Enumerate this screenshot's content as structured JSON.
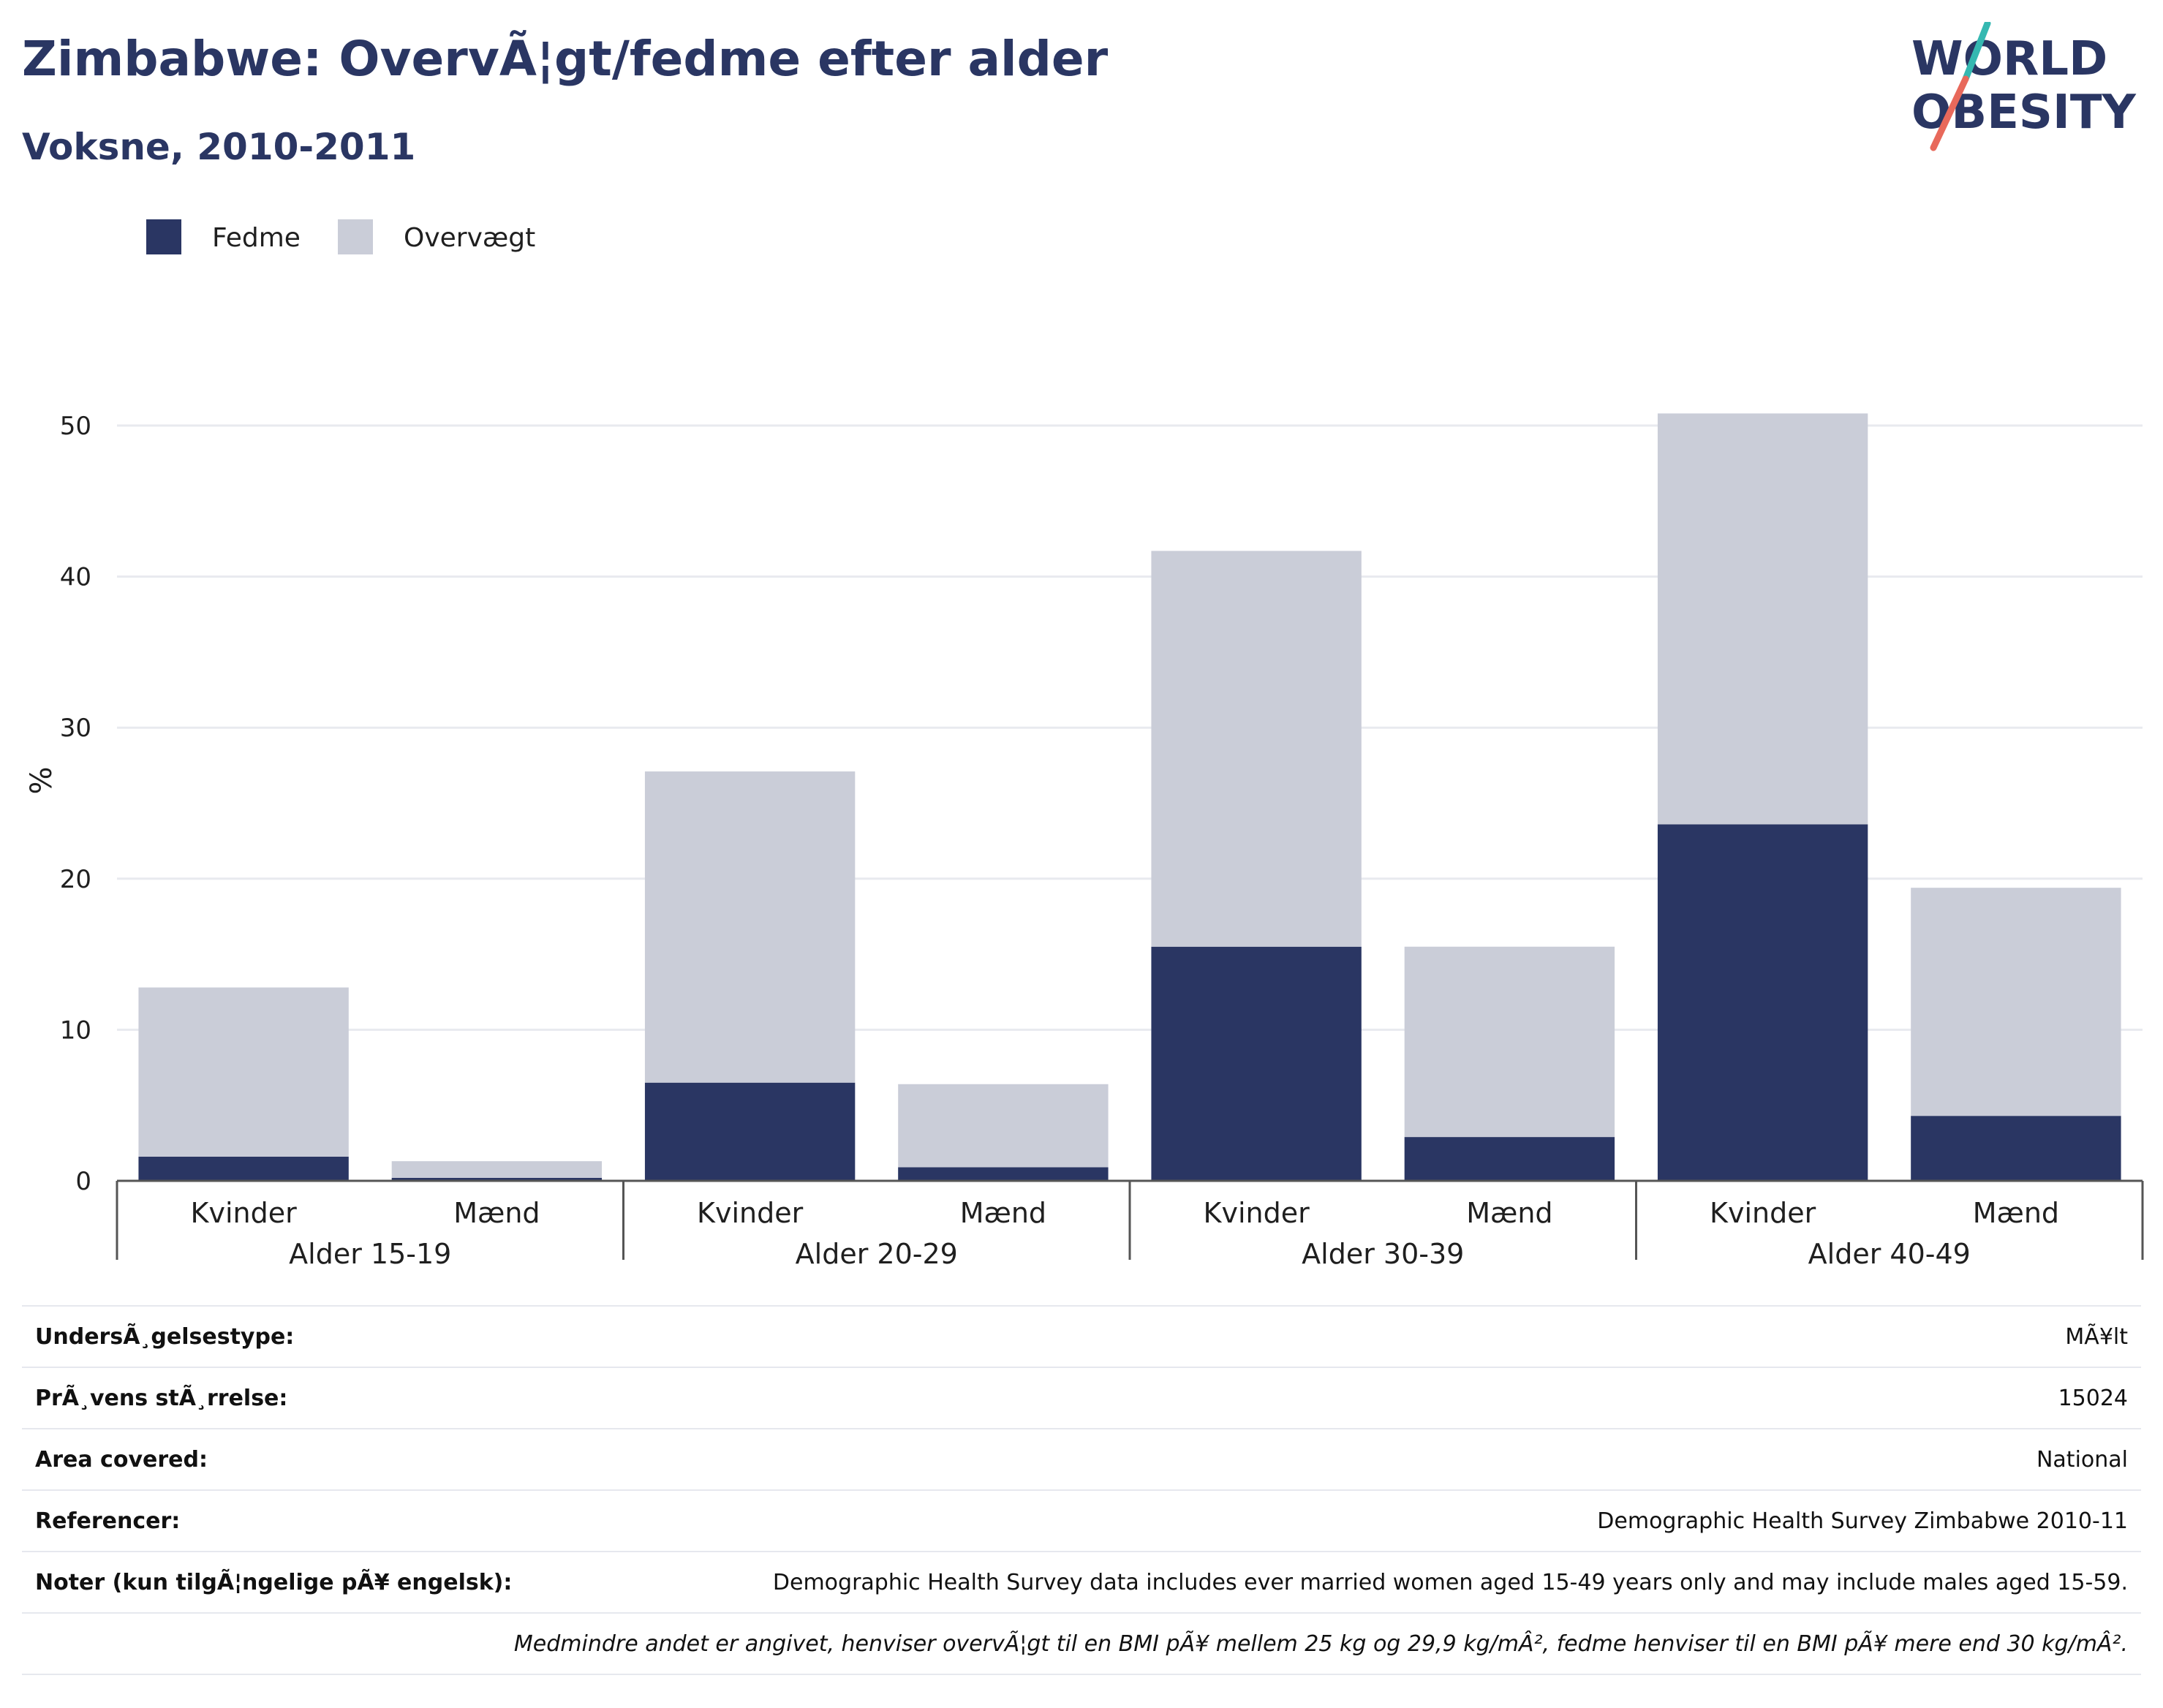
{
  "header": {
    "title": "Zimbabwe: OvervÃ¦gt/fedme efter alder",
    "subtitle": "Voksne, 2010-2011"
  },
  "logo": {
    "line1": "WORLD",
    "line2": "OBESITY",
    "slash_teal": "#35b8b1",
    "slash_coral": "#e8695b"
  },
  "chart_data": {
    "type": "bar",
    "stacked": true,
    "ylabel": "%",
    "ylim": [
      0,
      53
    ],
    "yticks": [
      0,
      10,
      20,
      30,
      40,
      50
    ],
    "grid": true,
    "legend_placement": "top-left",
    "groups": [
      "Alder 15-19",
      "Alder 20-29",
      "Alder 30-39",
      "Alder 40-49"
    ],
    "categories": [
      "Kvinder",
      "Mænd",
      "Kvinder",
      "Mænd",
      "Kvinder",
      "Mænd",
      "Kvinder",
      "Mænd"
    ],
    "series": [
      {
        "name": "Fedme",
        "color": "#2a3663",
        "values": [
          1.6,
          0.2,
          6.5,
          0.9,
          15.5,
          2.9,
          23.6,
          4.3
        ]
      },
      {
        "name": "Overvægt",
        "color": "#cacdd8",
        "values": [
          11.2,
          1.1,
          20.6,
          5.5,
          26.2,
          12.6,
          27.2,
          15.1
        ]
      }
    ]
  },
  "info": {
    "rows": [
      {
        "label": "UndersÃ¸gelsestype:",
        "value": "MÃ¥lt"
      },
      {
        "label": "PrÃ¸vens stÃ¸rrelse:",
        "value": "15024"
      },
      {
        "label": "Area covered:",
        "value": "National"
      },
      {
        "label": "Referencer:",
        "value": "Demographic Health Survey Zimbabwe 2010-11"
      },
      {
        "label": "Noter (kun tilgÃ¦ngelige pÃ¥ engelsk):",
        "value": "Demographic Health Survey data includes ever married women aged 15-49 years only and may include males aged 15-59."
      }
    ],
    "footnote": "Medmindre andet er angivet, henviser overvÃ¦gt til en BMI pÃ¥ mellem 25 kg og 29,9 kg/mÂ², fedme henviser til en BMI pÃ¥ mere end 30 kg/mÂ²."
  }
}
